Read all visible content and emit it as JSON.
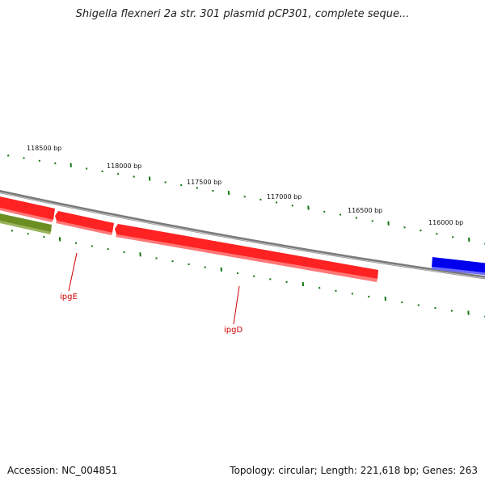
{
  "title": "Shigella flexneri 2a str. 301 plasmid pCP301, complete seque...",
  "footer": {
    "accession": "Accession: NC_004851",
    "topology": "Topology: circular; Length: 221,618 bp; Genes: 263"
  },
  "scale_labels": [
    "118500 bp",
    "118000 bp",
    "117500 bp",
    "117000 bp",
    "116500 bp",
    "116000 bp"
  ],
  "genes": [
    {
      "label": "ipgE",
      "color": "#dd0000",
      "strand": "reverse"
    },
    {
      "label": "ipgD",
      "color": "#dd0000",
      "strand": "reverse"
    }
  ],
  "colors": {
    "backbone": "#808080",
    "tick": "#117711",
    "gene_red": "#ff0000",
    "gene_olive": "#6b8e23",
    "gene_blue": "#0000ee",
    "label": "#cc0000"
  }
}
